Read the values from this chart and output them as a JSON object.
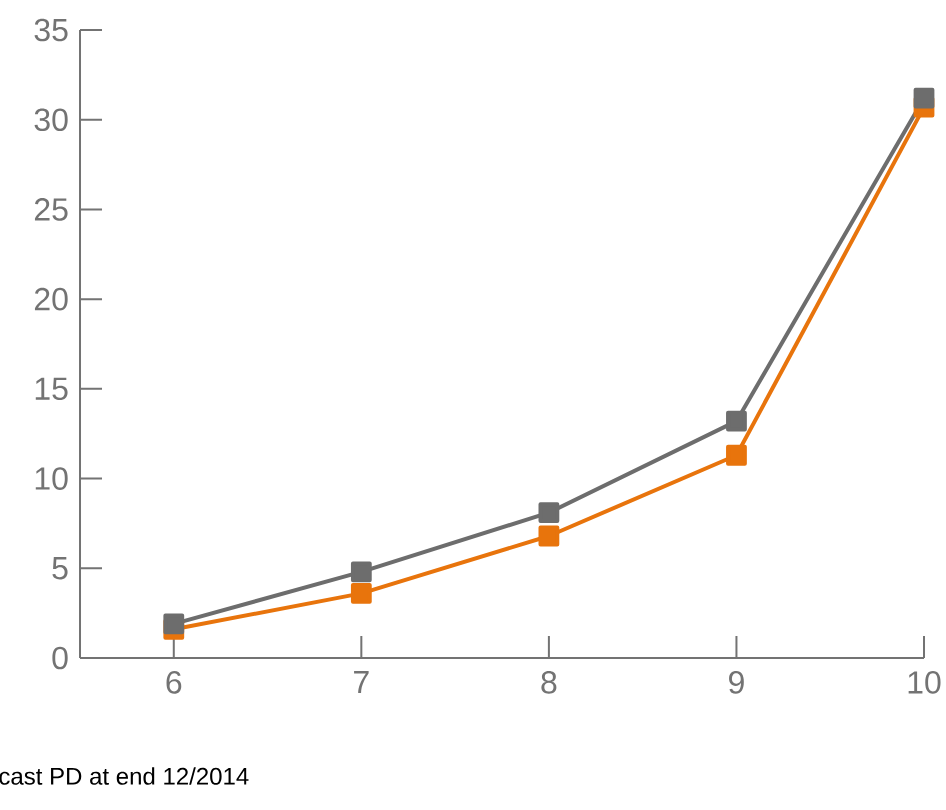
{
  "chart_data": {
    "type": "line",
    "x": [
      6,
      7,
      8,
      9,
      10
    ],
    "xlim": [
      5.5,
      10
    ],
    "xticks": [
      6,
      7,
      8,
      9,
      10
    ],
    "ylim": [
      0,
      35
    ],
    "yticks": [
      0,
      5,
      10,
      15,
      20,
      25,
      30,
      35
    ],
    "marker": "square",
    "line_style": "solid",
    "grid": false,
    "series": [
      {
        "color": "#6d6d6d",
        "values": [
          1.9,
          4.8,
          8.1,
          13.2,
          31.2
        ]
      },
      {
        "color": "#e8740c",
        "values": [
          1.6,
          3.6,
          6.8,
          11.3,
          30.7
        ]
      }
    ],
    "annotations": [
      "cast PD at end 12/2014"
    ]
  }
}
